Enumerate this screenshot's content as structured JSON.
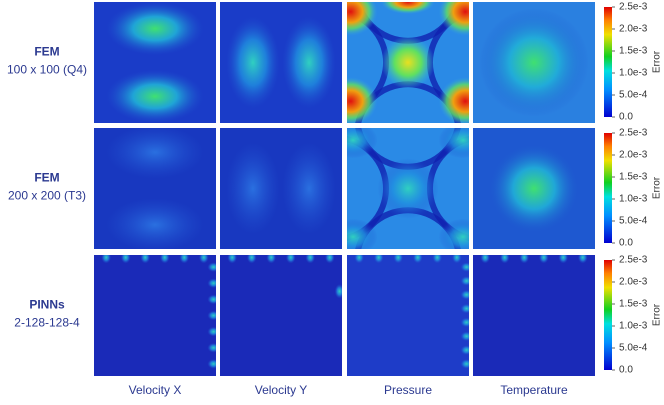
{
  "rows": [
    {
      "method": "FEM",
      "config": "100 x 100 (Q4)"
    },
    {
      "method": "FEM",
      "config": "200 x 200 (T3)"
    },
    {
      "method": "PINNs",
      "config": "2-128-128-4"
    }
  ],
  "columns": [
    "Velocity X",
    "Velocity Y",
    "Pressure",
    "Temperature"
  ],
  "colorbar": {
    "label": "Error",
    "lim": [
      0,
      0.0025
    ],
    "ticks": [
      {
        "value": 0,
        "label": "0.0"
      },
      {
        "value": 0.0005,
        "label": "5.0e-4"
      },
      {
        "value": 0.001,
        "label": "1.0e-3"
      },
      {
        "value": 0.0015,
        "label": "1.5e-3"
      },
      {
        "value": 0.002,
        "label": "2.0e-3"
      },
      {
        "value": 0.0025,
        "label": "2.5e-3"
      }
    ]
  }
}
